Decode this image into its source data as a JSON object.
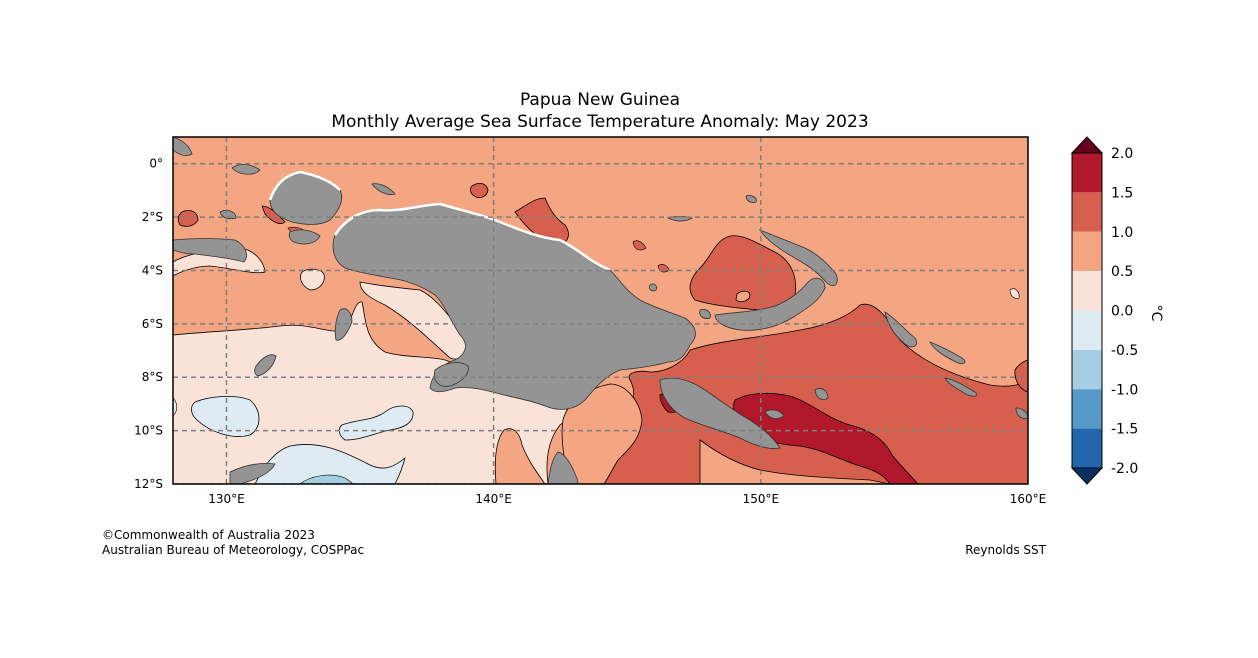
{
  "title": {
    "line1": "Papua New Guinea",
    "line2": "Monthly Average Sea Surface Temperature Anomaly: May 2023"
  },
  "map": {
    "lon_range": [
      128,
      160
    ],
    "lat_range": [
      -12,
      1
    ],
    "lon_ticks": [
      {
        "value": 130,
        "label": "130°E"
      },
      {
        "value": 140,
        "label": "140°E"
      },
      {
        "value": 150,
        "label": "150°E"
      },
      {
        "value": 160,
        "label": "160°E"
      }
    ],
    "lat_ticks": [
      {
        "value": 0,
        "label": "0°"
      },
      {
        "value": -2,
        "label": "2°S"
      },
      {
        "value": -4,
        "label": "4°S"
      },
      {
        "value": -6,
        "label": "6°S"
      },
      {
        "value": -8,
        "label": "8°S"
      },
      {
        "value": -10,
        "label": "10°S"
      },
      {
        "value": -12,
        "label": "12°S"
      }
    ],
    "land_color": "#949494",
    "grid_color": "#7f7f7f"
  },
  "colorbar": {
    "unit": "°C",
    "over_color": "#67001f",
    "under_color": "#053061",
    "bins": [
      {
        "from": 1.5,
        "to": 2.0,
        "color": "#b2182b"
      },
      {
        "from": 1.0,
        "to": 1.5,
        "color": "#d6604d"
      },
      {
        "from": 0.5,
        "to": 1.0,
        "color": "#f4a582"
      },
      {
        "from": 0.0,
        "to": 0.5,
        "color": "#f9e3d8"
      },
      {
        "from": -0.5,
        "to": 0.0,
        "color": "#deebf2"
      },
      {
        "from": -1.0,
        "to": -0.5,
        "color": "#a6cee3"
      },
      {
        "from": -1.5,
        "to": -1.0,
        "color": "#5499c7"
      },
      {
        "from": -2.0,
        "to": -1.5,
        "color": "#2166ac"
      }
    ],
    "labels": [
      "2.0",
      "1.5",
      "1.0",
      "0.5",
      "0.0",
      "-0.5",
      "-1.0",
      "-1.5",
      "-2.0"
    ]
  },
  "footer": {
    "copyright": "©Commonwealth of Australia 2023",
    "agency": "Australian Bureau of Meteorology, COSPPac",
    "source": "Reynolds SST"
  }
}
